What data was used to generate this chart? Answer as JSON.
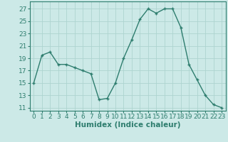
{
  "x": [
    0,
    1,
    2,
    3,
    4,
    5,
    6,
    7,
    8,
    9,
    10,
    11,
    12,
    13,
    14,
    15,
    16,
    17,
    18,
    19,
    20,
    21,
    22,
    23
  ],
  "y": [
    15,
    19.5,
    20,
    18,
    18,
    17.5,
    17,
    16.5,
    12.3,
    12.5,
    15,
    19,
    22,
    25.3,
    27,
    26.3,
    27,
    27,
    24,
    18,
    15.5,
    13,
    11.5,
    11
  ],
  "line_color": "#2e7d6e",
  "marker": "+",
  "bg_color": "#cce9e7",
  "grid_color": "#aed4d0",
  "xlabel": "Humidex (Indice chaleur)",
  "ylim": [
    10.5,
    28.2
  ],
  "xlim": [
    -0.5,
    23.5
  ],
  "yticks": [
    11,
    13,
    15,
    17,
    19,
    21,
    23,
    25,
    27
  ],
  "xticks": [
    0,
    1,
    2,
    3,
    4,
    5,
    6,
    7,
    8,
    9,
    10,
    11,
    12,
    13,
    14,
    15,
    16,
    17,
    18,
    19,
    20,
    21,
    22,
    23
  ],
  "xlabel_fontsize": 7.5,
  "tick_fontsize": 6.5,
  "line_width": 1.0,
  "marker_size": 3.5
}
